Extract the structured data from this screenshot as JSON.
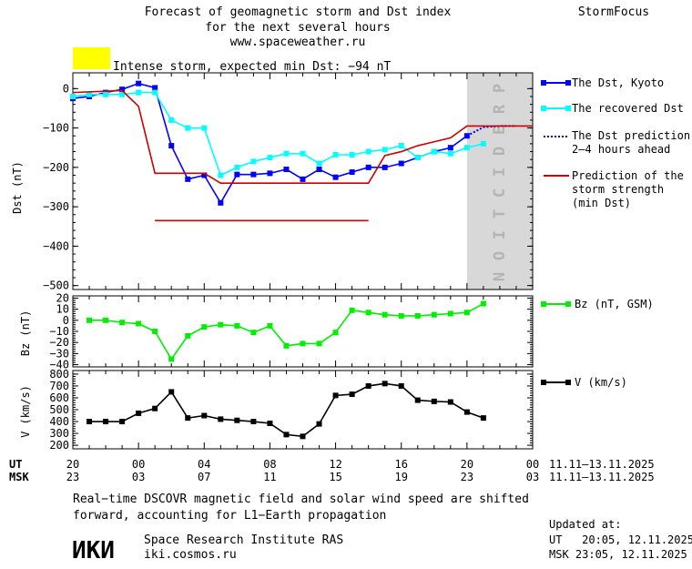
{
  "header": {
    "title_line1": "Forecast of geomagnetic storm and Dst index",
    "title_line2": "for the next several hours",
    "site": "www.spaceweather.ru",
    "brand": "StormFocus"
  },
  "alert": {
    "color": "#ffff00",
    "text": "Intense storm, expected min Dst: −94 nT"
  },
  "prediction_label": [
    "P",
    "R",
    "E",
    "D",
    "I",
    "C",
    "T",
    "I",
    "O",
    "N"
  ],
  "time_axis": {
    "ut_label": "UT",
    "msk_label": "MSK",
    "ut_ticks": [
      "20",
      "00",
      "04",
      "08",
      "12",
      "16",
      "20",
      "00"
    ],
    "msk_ticks": [
      "23",
      "03",
      "07",
      "11",
      "15",
      "19",
      "23",
      "03"
    ],
    "date_range_ut": "11.11–13.11.2025",
    "date_range_msk": "11.11–13.11.2025"
  },
  "chart_data": [
    {
      "type": "line",
      "panel": "dst",
      "ylabel": "Dst (nT)",
      "ylim": [
        -510,
        40
      ],
      "yticks": [
        "0",
        "−100",
        "−200",
        "−300",
        "−400",
        "−500"
      ],
      "x_range_hours": [
        0,
        28
      ],
      "series": [
        {
          "name": "The Dst, Kyoto",
          "color": "#0000ff",
          "x": [
            0,
            1,
            2,
            3,
            4,
            5,
            6,
            7,
            8,
            9,
            10,
            11,
            12,
            13,
            14,
            15,
            16,
            17,
            18,
            19,
            20,
            21,
            22,
            23,
            24
          ],
          "y": [
            -25,
            -20,
            -10,
            -2,
            13,
            2,
            -145,
            -230,
            -220,
            -290,
            -218,
            -218,
            -215,
            -205,
            -230,
            -205,
            -225,
            -212,
            -200,
            -200,
            -190,
            -175,
            -160,
            -150,
            -120
          ]
        },
        {
          "name": "The recovered Dst",
          "color": "#00ffff",
          "x": [
            0,
            1,
            2,
            3,
            4,
            5,
            6,
            7,
            8,
            9,
            10,
            11,
            12,
            13,
            14,
            15,
            16,
            17,
            18,
            19,
            20,
            21,
            22,
            23,
            24,
            25
          ],
          "y": [
            -20,
            -15,
            -15,
            -15,
            -10,
            -10,
            -80,
            -100,
            -100,
            -220,
            -200,
            -185,
            -175,
            -165,
            -165,
            -190,
            -168,
            -168,
            -160,
            -155,
            -145,
            -175,
            -160,
            -165,
            -150,
            -140
          ]
        },
        {
          "name": "The Dst prediction 2–4 hours ahead",
          "color": "#0000ff",
          "style": "dotted",
          "x": [
            24,
            25,
            26,
            27
          ],
          "y": [
            -120,
            -98,
            -95,
            -95
          ]
        },
        {
          "name": "Prediction of the storm strength (min Dst)",
          "color": "#cc0000",
          "x": [
            0,
            3,
            4,
            5,
            6,
            7,
            8,
            9,
            10,
            11,
            12,
            13,
            14,
            15,
            16,
            17,
            18,
            19,
            20,
            21,
            22,
            23,
            24,
            28
          ],
          "y": [
            -10,
            -5,
            -45,
            -215,
            -215,
            -215,
            -215,
            -240,
            -240,
            -240,
            -240,
            -240,
            -240,
            -240,
            -240,
            -240,
            -240,
            -170,
            -160,
            -145,
            -135,
            -125,
            -95,
            -95
          ]
        },
        {
          "name": "",
          "color": "#cc0000",
          "x": [
            5,
            18
          ],
          "y": [
            -335,
            -335
          ]
        }
      ],
      "legend": [
        "The Dst, Kyoto",
        "The recovered Dst",
        "The Dst prediction",
        "2–4 hours ahead",
        "Prediction of the",
        "storm strength",
        "(min Dst)"
      ],
      "legend_position": "right",
      "shaded_region_hours": [
        24,
        28
      ],
      "shaded_color": "#d8d8d8"
    },
    {
      "type": "line",
      "panel": "bz",
      "ylabel": "Bz (nT)",
      "ylim": [
        -42,
        22
      ],
      "yticks": [
        "20",
        "10",
        "0",
        "−10",
        "−20",
        "−30",
        "−40"
      ],
      "series": [
        {
          "name": "Bz (nT, GSM)",
          "color": "#00ee00",
          "x": [
            1,
            2,
            3,
            4,
            5,
            6,
            7,
            8,
            9,
            10,
            11,
            12,
            13,
            14,
            15,
            16,
            17,
            18,
            19,
            20,
            21,
            22,
            23,
            24,
            25
          ],
          "y": [
            0,
            0,
            -2,
            -3,
            -10,
            -35,
            -14,
            -6,
            -4,
            -5,
            -11,
            -5,
            -23,
            -21,
            -21,
            -11,
            9,
            7,
            5,
            4,
            4,
            5,
            6,
            7,
            15
          ]
        }
      ],
      "legend": [
        "Bz (nT, GSM)"
      ],
      "legend_position": "right"
    },
    {
      "type": "line",
      "panel": "v",
      "ylabel": "V (km/s)",
      "ylim": [
        170,
        830
      ],
      "yticks": [
        "800",
        "700",
        "600",
        "500",
        "400",
        "300",
        "200"
      ],
      "series": [
        {
          "name": "V (km/s)",
          "color": "#000000",
          "x": [
            1,
            2,
            3,
            4,
            5,
            6,
            7,
            8,
            9,
            10,
            11,
            12,
            13,
            14,
            15,
            16,
            17,
            18,
            19,
            20,
            21,
            22,
            23,
            24,
            25
          ],
          "y": [
            400,
            400,
            400,
            470,
            510,
            650,
            430,
            450,
            420,
            410,
            400,
            385,
            290,
            275,
            380,
            620,
            630,
            700,
            720,
            700,
            580,
            570,
            565,
            480,
            430
          ]
        }
      ],
      "legend": [
        "V (km/s)"
      ],
      "legend_position": "right"
    }
  ],
  "footer": {
    "note_line1": "Real−time DSCOVR magnetic field and solar wind speed are shifted",
    "note_line2": "forward, accounting for L1−Earth propagation",
    "logo_text": "ИКИ",
    "institute": "Space Research Institute RAS",
    "institute_site": "iki.cosmos.ru",
    "updated_label": "Updated at:",
    "updated_ut": "UT   20:05, 12.11.2025",
    "updated_msk": "MSK 23:05, 12.11.2025"
  }
}
